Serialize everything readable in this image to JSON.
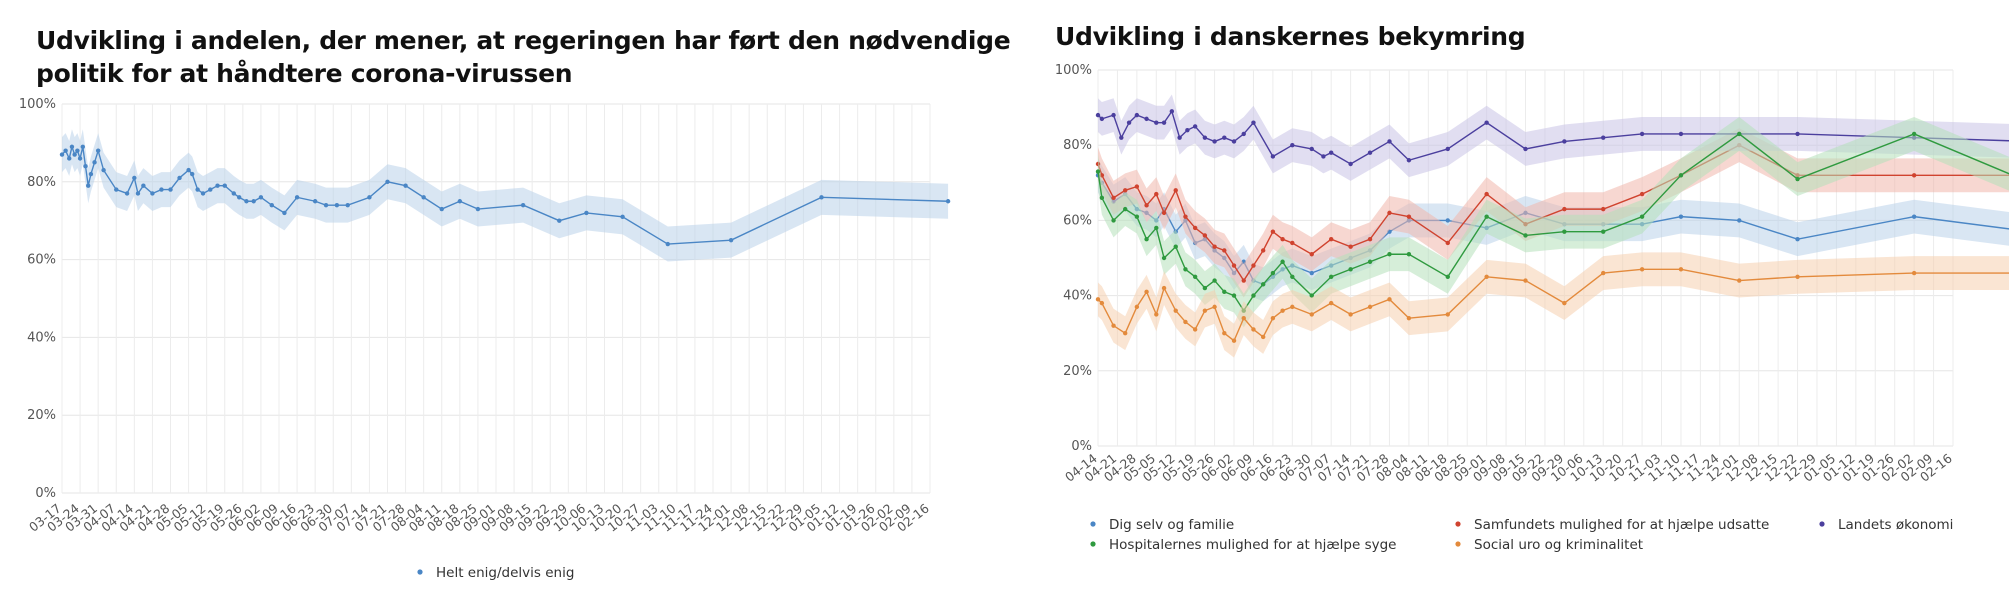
{
  "chart_data": [
    {
      "type": "line",
      "title": "Udvikling i andelen, der mener, at regeringen har ført den nødvendige politik for at håndtere corona-virussen",
      "ylim": [
        0,
        100
      ],
      "y_ticks": [
        "0%",
        "20%",
        "40%",
        "60%",
        "80%",
        "100%"
      ],
      "x_ticks": [
        "03-17",
        "03-24",
        "03-31",
        "04-07",
        "04-14",
        "04-21",
        "04-28",
        "05-05",
        "05-12",
        "05-19",
        "05-26",
        "06-02",
        "06-09",
        "06-16",
        "06-23",
        "06-30",
        "07-07",
        "07-14",
        "07-21",
        "07-28",
        "08-04",
        "08-11",
        "08-18",
        "08-25",
        "09-01",
        "09-08",
        "09-15",
        "09-22",
        "09-29",
        "10-06",
        "10-13",
        "10-20",
        "10-27",
        "11-03",
        "11-10",
        "11-17",
        "11-24",
        "12-01",
        "12-08",
        "12-15",
        "12-22",
        "12-29",
        "01-05",
        "01-12",
        "01-19",
        "01-26",
        "02-02",
        "02-09",
        "02-16"
      ],
      "grid": true,
      "legend_position": "bottom",
      "series": [
        {
          "name": "Helt enig/delvis enig",
          "color": "#4a86c5",
          "band_color": "#b9d2ea",
          "x": [
            0.0,
            0.2,
            0.4,
            0.55,
            0.7,
            0.85,
            1.0,
            1.15,
            1.3,
            1.45,
            1.6,
            1.8,
            2.0,
            2.3,
            3.0,
            3.6,
            4.0,
            4.2,
            4.5,
            5.0,
            5.5,
            6.0,
            6.5,
            7.0,
            7.2,
            7.5,
            7.8,
            8.2,
            8.6,
            9.0,
            9.5,
            9.8,
            10.2,
            10.6,
            11.0,
            11.6,
            12.3,
            13.0,
            14.0,
            14.6,
            15.2,
            15.8,
            17.0,
            18.0,
            19.0,
            20.0,
            21.0,
            22.0,
            23.0,
            25.5,
            27.5,
            29.0,
            31.0,
            33.5,
            37.0,
            42.0,
            49.0
          ],
          "values": [
            87,
            88,
            86,
            89,
            87,
            88,
            86,
            89,
            84,
            79,
            82,
            85,
            88,
            83,
            78,
            77,
            81,
            77,
            79,
            77,
            78,
            78,
            81,
            83,
            82,
            78,
            77,
            78,
            79,
            79,
            77,
            76,
            75,
            75,
            76,
            74,
            72,
            76,
            75,
            74,
            74,
            74,
            76,
            80,
            79,
            76,
            73,
            75,
            73,
            74,
            70,
            72,
            71,
            64,
            65,
            76,
            75
          ]
        }
      ]
    },
    {
      "type": "line",
      "title": "Udvikling i danskernes bekymring",
      "ylim": [
        0,
        100
      ],
      "y_ticks": [
        "0%",
        "20%",
        "40%",
        "60%",
        "80%",
        "100%"
      ],
      "x_ticks": [
        "04-14",
        "04-21",
        "04-28",
        "05-05",
        "05-12",
        "05-19",
        "05-26",
        "06-02",
        "06-09",
        "06-16",
        "06-23",
        "06-30",
        "07-07",
        "07-14",
        "07-21",
        "07-28",
        "08-04",
        "08-11",
        "08-18",
        "08-25",
        "09-01",
        "09-08",
        "09-15",
        "09-22",
        "09-29",
        "10-06",
        "10-13",
        "10-20",
        "10-27",
        "11-03",
        "11-10",
        "11-17",
        "11-24",
        "12-01",
        "12-08",
        "12-15",
        "12-22",
        "12-29",
        "01-05",
        "01-12",
        "01-19",
        "01-26",
        "02-02",
        "02-09",
        "02-16"
      ],
      "grid": true,
      "legend_position": "bottom",
      "series": [
        {
          "name": "Dig selv og familie",
          "color": "#4a86c5",
          "band_color": "#b9d2ea",
          "x": [
            0.0,
            0.2,
            0.8,
            1.4,
            2.0,
            2.5,
            3.0,
            3.4,
            4.0,
            4.5,
            5.0,
            5.5,
            6.0,
            6.5,
            7.0,
            7.5,
            8.0,
            8.5,
            9.0,
            9.5,
            10.0,
            11.0,
            12.0,
            13.0,
            14.0,
            15.0,
            16.0,
            18.0,
            20.0,
            22.0,
            24.0,
            26.0,
            28.0,
            30.0,
            33.0,
            36.0,
            42.0,
            48.0
          ],
          "values": [
            72,
            70,
            65,
            67,
            63,
            62,
            60,
            63,
            57,
            60,
            54,
            55,
            52,
            50,
            46,
            49,
            44,
            43,
            45,
            47,
            48,
            46,
            48,
            50,
            52,
            57,
            60,
            60,
            58,
            62,
            59,
            59,
            59,
            61,
            60,
            55,
            61,
            57
          ]
        },
        {
          "name": "Samfundets mulighed for at hjælpe udsatte",
          "color": "#d0432f",
          "band_color": "#f1b6ac",
          "x": [
            0.0,
            0.2,
            0.8,
            1.4,
            2.0,
            2.5,
            3.0,
            3.4,
            4.0,
            4.5,
            5.0,
            5.5,
            6.0,
            6.5,
            7.0,
            7.5,
            8.0,
            8.5,
            9.0,
            9.5,
            10.0,
            11.0,
            12.0,
            13.0,
            14.0,
            15.0,
            16.0,
            18.0,
            20.0,
            22.0,
            24.0,
            26.0,
            28.0,
            30.0,
            33.0,
            36.0,
            42.0,
            48.0
          ],
          "values": [
            75,
            72,
            66,
            68,
            69,
            64,
            67,
            62,
            68,
            61,
            58,
            56,
            53,
            52,
            48,
            44,
            48,
            52,
            57,
            55,
            54,
            51,
            55,
            53,
            55,
            62,
            61,
            54,
            67,
            59,
            63,
            63,
            67,
            72,
            80,
            72,
            72,
            72
          ]
        },
        {
          "name": "Landets økonomi",
          "color": "#4b3f9e",
          "band_color": "#c9c3e6",
          "x": [
            0.0,
            0.2,
            0.8,
            1.2,
            1.6,
            2.0,
            2.5,
            3.0,
            3.4,
            3.8,
            4.2,
            4.6,
            5.0,
            5.5,
            6.0,
            6.5,
            7.0,
            7.5,
            8.0,
            9.0,
            10.0,
            11.0,
            11.6,
            12.0,
            13.0,
            14.0,
            15.0,
            16.0,
            18.0,
            20.0,
            22.0,
            24.0,
            26.0,
            28.0,
            30.0,
            33.0,
            36.0,
            42.0,
            48.0
          ],
          "values": [
            88,
            87,
            88,
            82,
            86,
            88,
            87,
            86,
            86,
            89,
            82,
            84,
            85,
            82,
            81,
            82,
            81,
            83,
            86,
            77,
            80,
            79,
            77,
            78,
            75,
            78,
            81,
            76,
            79,
            86,
            79,
            81,
            82,
            83,
            83,
            83,
            83,
            82,
            81
          ]
        },
        {
          "name": "Hospitalernes mulighed for at hjælpe syge",
          "color": "#2f9a3f",
          "band_color": "#b4e0b9",
          "x": [
            0.0,
            0.2,
            0.8,
            1.4,
            2.0,
            2.5,
            3.0,
            3.4,
            4.0,
            4.5,
            5.0,
            5.5,
            6.0,
            6.5,
            7.0,
            7.5,
            8.0,
            8.5,
            9.0,
            9.5,
            10.0,
            11.0,
            12.0,
            13.0,
            14.0,
            15.0,
            16.0,
            18.0,
            20.0,
            22.0,
            24.0,
            26.0,
            28.0,
            30.0,
            33.0,
            36.0,
            42.0,
            48.0
          ],
          "values": [
            73,
            66,
            60,
            63,
            61,
            55,
            58,
            50,
            53,
            47,
            45,
            42,
            44,
            41,
            40,
            36,
            40,
            43,
            46,
            49,
            45,
            40,
            45,
            47,
            49,
            51,
            51,
            45,
            61,
            56,
            57,
            57,
            61,
            72,
            83,
            71,
            83,
            70
          ]
        },
        {
          "name": "Social uro og kriminalitet",
          "color": "#e38a3c",
          "band_color": "#f6cfae",
          "x": [
            0.0,
            0.2,
            0.8,
            1.4,
            2.0,
            2.5,
            3.0,
            3.4,
            4.0,
            4.5,
            5.0,
            5.5,
            6.0,
            6.5,
            7.0,
            7.5,
            8.0,
            8.5,
            9.0,
            9.5,
            10.0,
            11.0,
            12.0,
            13.0,
            14.0,
            15.0,
            16.0,
            18.0,
            20.0,
            22.0,
            24.0,
            26.0,
            28.0,
            30.0,
            33.0,
            36.0,
            42.0,
            48.0
          ],
          "values": [
            39,
            38,
            32,
            30,
            37,
            41,
            35,
            42,
            36,
            33,
            31,
            36,
            37,
            30,
            28,
            34,
            31,
            29,
            34,
            36,
            37,
            35,
            38,
            35,
            37,
            39,
            34,
            35,
            45,
            44,
            38,
            46,
            47,
            47,
            44,
            45,
            46,
            46
          ]
        }
      ]
    }
  ]
}
